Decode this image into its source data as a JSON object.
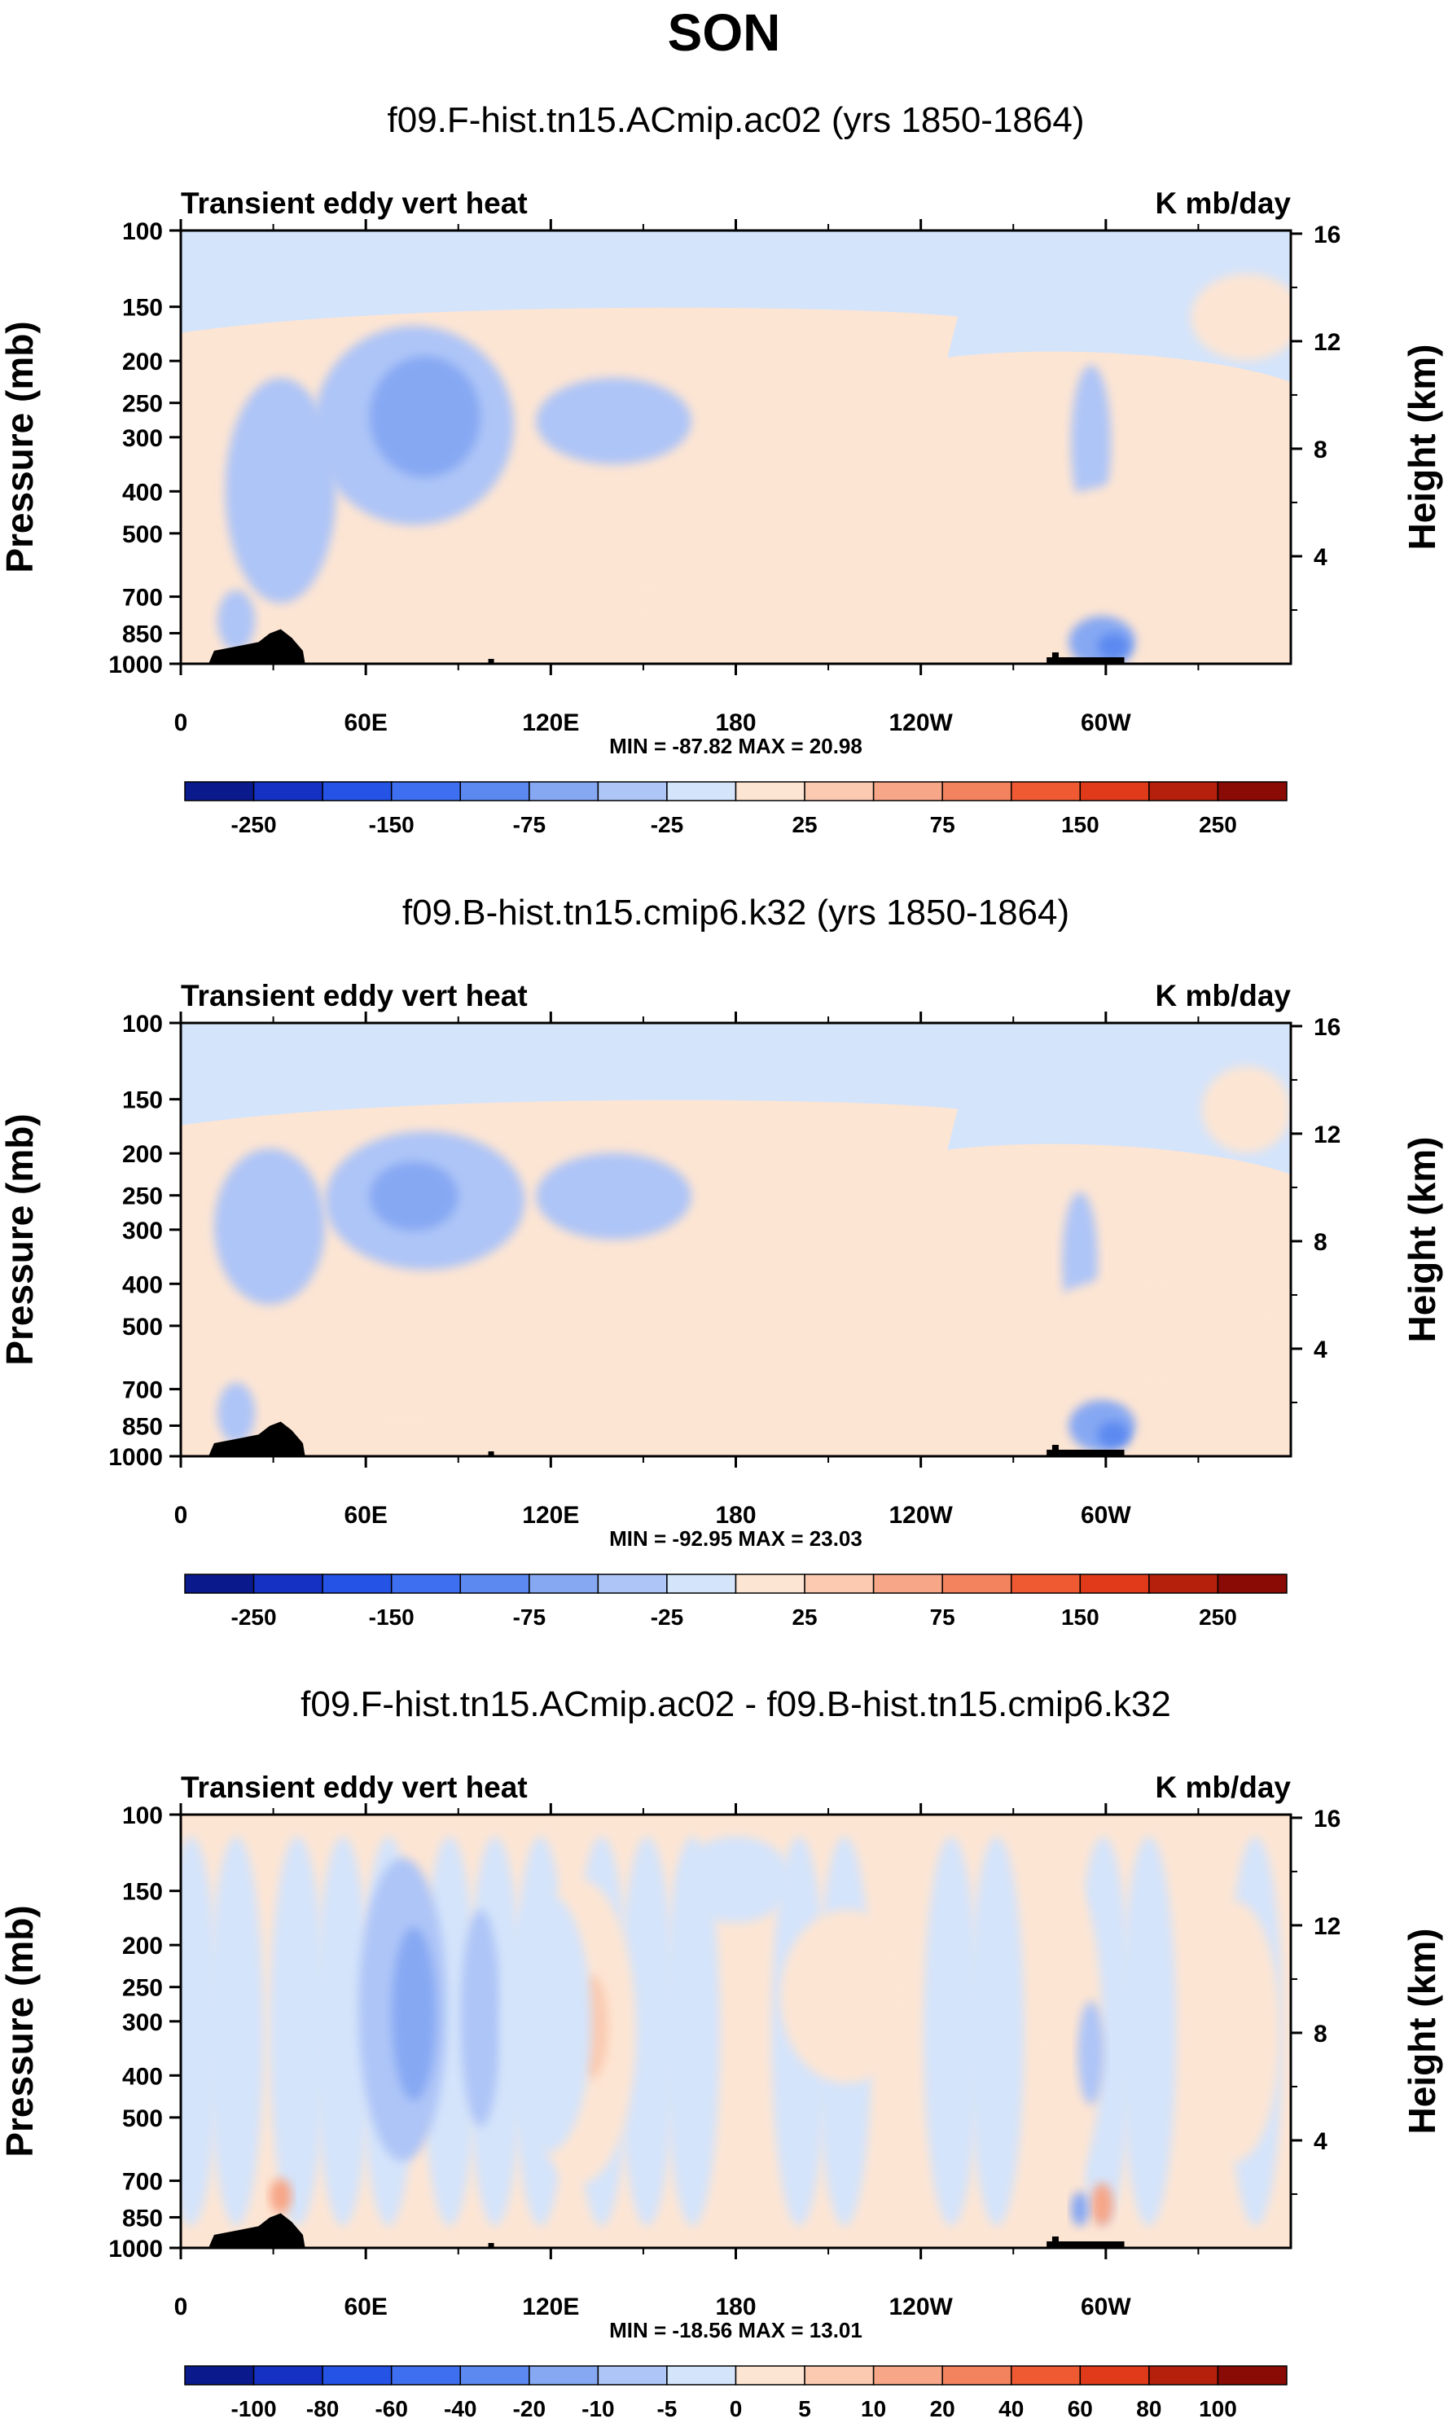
{
  "main_title": "SON",
  "chart_data": [
    {
      "type": "heatmap",
      "title": "f09.F-hist.tn15.ACmip.ac02 (yrs 1850-1864)",
      "left_string": "Transient eddy vert heat",
      "right_string": "K mb/day",
      "ylabel": "Pressure (mb)",
      "ylabel_right": "Height (km)",
      "x_ticks": [
        "0",
        "60E",
        "120E",
        "180",
        "120W",
        "60W"
      ],
      "x_tick_values": [
        0,
        60,
        120,
        180,
        240,
        300
      ],
      "xlim": [
        0,
        360
      ],
      "y_ticks": [
        "100",
        "150",
        "200",
        "250",
        "300",
        "400",
        "500",
        "700",
        "850",
        "1000"
      ],
      "y_tick_values": [
        100,
        150,
        200,
        250,
        300,
        400,
        500,
        700,
        850,
        1000
      ],
      "ylim": [
        1000,
        100
      ],
      "y_right_ticks": [
        "16",
        "12",
        "8",
        "4"
      ],
      "y_right_values": [
        16,
        12,
        8,
        4
      ],
      "min": -87.82,
      "max": 20.98,
      "minmax_label": "MIN = -87.82  MAX =  20.98",
      "colorbar_labels": [
        "-250",
        "-150",
        "-75",
        "-25",
        "25",
        "75",
        "150",
        "250"
      ],
      "colorbar_levels": [
        -300,
        -250,
        -200,
        -150,
        -100,
        -75,
        -50,
        -25,
        0,
        25,
        50,
        75,
        100,
        150,
        200,
        250,
        300
      ],
      "colors": [
        "#0a1a8c",
        "#1431c4",
        "#2453e6",
        "#3e6ff0",
        "#5c89f0",
        "#86a8f3",
        "#aec5f7",
        "#d4e4fb",
        "#fde5d3",
        "#fbcab1",
        "#f7a687",
        "#f3825f",
        "#ef5a32",
        "#e03a1a",
        "#b5200c",
        "#8a0a05"
      ]
    },
    {
      "type": "heatmap",
      "title": "f09.B-hist.tn15.cmip6.k32 (yrs 1850-1864)",
      "left_string": "Transient eddy vert heat",
      "right_string": "K mb/day",
      "ylabel": "Pressure (mb)",
      "ylabel_right": "Height (km)",
      "x_ticks": [
        "0",
        "60E",
        "120E",
        "180",
        "120W",
        "60W"
      ],
      "x_tick_values": [
        0,
        60,
        120,
        180,
        240,
        300
      ],
      "xlim": [
        0,
        360
      ],
      "y_ticks": [
        "100",
        "150",
        "200",
        "250",
        "300",
        "400",
        "500",
        "700",
        "850",
        "1000"
      ],
      "y_tick_values": [
        100,
        150,
        200,
        250,
        300,
        400,
        500,
        700,
        850,
        1000
      ],
      "ylim": [
        1000,
        100
      ],
      "y_right_ticks": [
        "16",
        "12",
        "8",
        "4"
      ],
      "y_right_values": [
        16,
        12,
        8,
        4
      ],
      "min": -92.95,
      "max": 23.03,
      "minmax_label": "MIN = -92.95  MAX =  23.03",
      "colorbar_labels": [
        "-250",
        "-150",
        "-75",
        "-25",
        "25",
        "75",
        "150",
        "250"
      ],
      "colorbar_levels": [
        -300,
        -250,
        -200,
        -150,
        -100,
        -75,
        -50,
        -25,
        0,
        25,
        50,
        75,
        100,
        150,
        200,
        250,
        300
      ],
      "colors": [
        "#0a1a8c",
        "#1431c4",
        "#2453e6",
        "#3e6ff0",
        "#5c89f0",
        "#86a8f3",
        "#aec5f7",
        "#d4e4fb",
        "#fde5d3",
        "#fbcab1",
        "#f7a687",
        "#f3825f",
        "#ef5a32",
        "#e03a1a",
        "#b5200c",
        "#8a0a05"
      ]
    },
    {
      "type": "heatmap",
      "title": "f09.F-hist.tn15.ACmip.ac02 - f09.B-hist.tn15.cmip6.k32",
      "left_string": "Transient eddy vert heat",
      "right_string": "K mb/day",
      "ylabel": "Pressure (mb)",
      "ylabel_right": "Height (km)",
      "x_ticks": [
        "0",
        "60E",
        "120E",
        "180",
        "120W",
        "60W"
      ],
      "x_tick_values": [
        0,
        60,
        120,
        180,
        240,
        300
      ],
      "xlim": [
        0,
        360
      ],
      "y_ticks": [
        "100",
        "150",
        "200",
        "250",
        "300",
        "400",
        "500",
        "700",
        "850",
        "1000"
      ],
      "y_tick_values": [
        100,
        150,
        200,
        250,
        300,
        400,
        500,
        700,
        850,
        1000
      ],
      "ylim": [
        1000,
        100
      ],
      "y_right_ticks": [
        "16",
        "12",
        "8",
        "4"
      ],
      "y_right_values": [
        16,
        12,
        8,
        4
      ],
      "min": -18.56,
      "max": 13.01,
      "minmax_label": "MIN = -18.56  MAX =  13.01",
      "colorbar_labels": [
        "-100",
        "-80",
        "-60",
        "-40",
        "-20",
        "-10",
        "-5",
        "0",
        "5",
        "10",
        "20",
        "40",
        "60",
        "80",
        "100"
      ],
      "colorbar_levels": [
        -120,
        -100,
        -80,
        -60,
        -40,
        -20,
        -10,
        -5,
        0,
        5,
        10,
        20,
        40,
        60,
        80,
        100,
        120
      ],
      "colors": [
        "#0a1a8c",
        "#1431c4",
        "#2453e6",
        "#3e6ff0",
        "#5c89f0",
        "#86a8f3",
        "#aec5f7",
        "#d4e4fb",
        "#fde5d3",
        "#fbcab1",
        "#f7a687",
        "#f3825f",
        "#ef5a32",
        "#e03a1a",
        "#b5200c",
        "#8a0a05"
      ]
    }
  ]
}
